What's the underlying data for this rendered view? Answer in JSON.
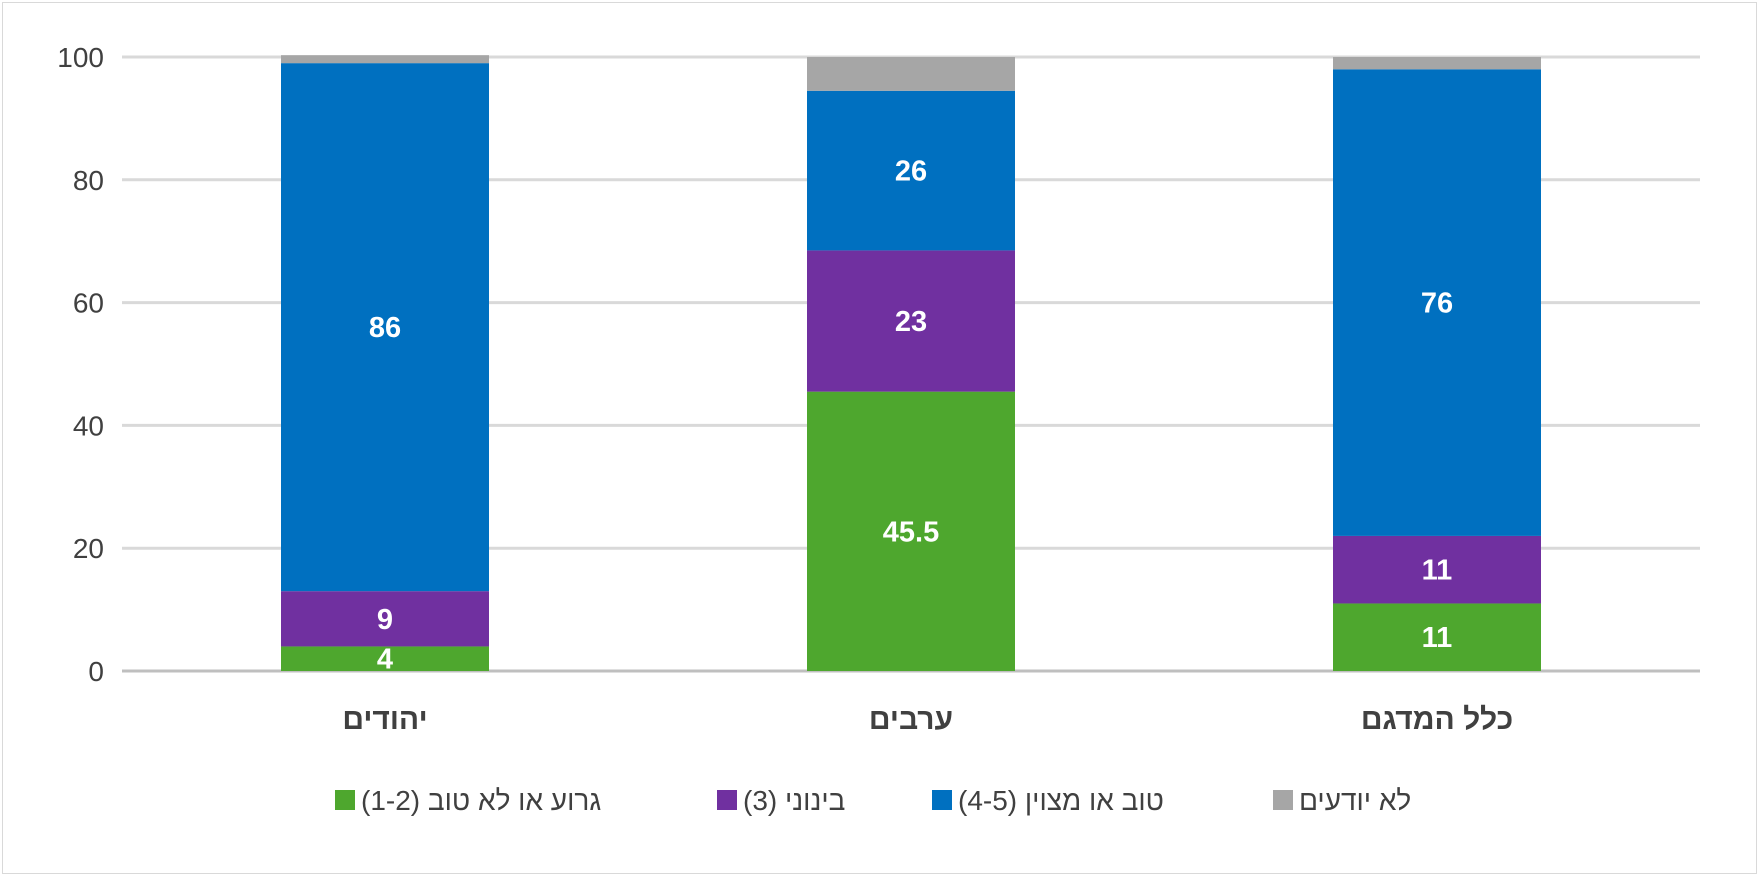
{
  "chart_data": {
    "type": "bar",
    "stacked": true,
    "categories": [
      "יהודים",
      "ערבים",
      "כלל המדגם"
    ],
    "ylim": [
      0,
      100
    ],
    "yticks": [
      0,
      20,
      40,
      60,
      80,
      100
    ],
    "grid": true,
    "legend_position": "bottom",
    "series": [
      {
        "name": "גרוע או לא טוב (1-2)",
        "color": "#4ea72e",
        "values": [
          4,
          45.5,
          11
        ],
        "labels": [
          "4",
          "45.5",
          "11"
        ]
      },
      {
        "name": "בינוני (3)",
        "color": "#7030a0",
        "values": [
          9,
          23,
          11
        ],
        "labels": [
          "9",
          "23",
          "11"
        ]
      },
      {
        "name": "טוב או מצוין (4-5)",
        "color": "#0070c0",
        "values": [
          86,
          26,
          76
        ],
        "labels": [
          "86",
          "26",
          "76"
        ]
      },
      {
        "name": "לא יודעים",
        "color": "#a6a6a6",
        "values": [
          1.3,
          5.5,
          2
        ],
        "labels": [
          "",
          "",
          ""
        ]
      }
    ]
  }
}
